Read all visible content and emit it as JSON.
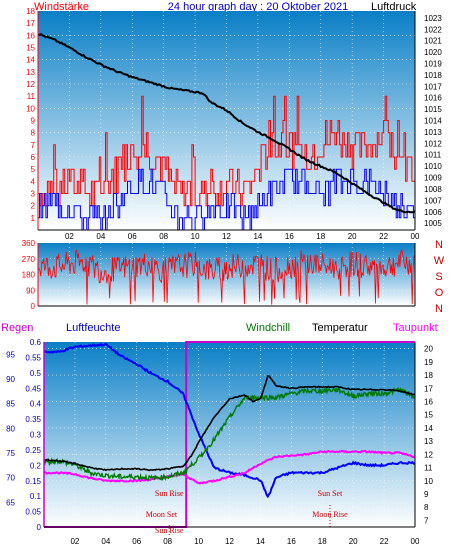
{
  "colors": {
    "wind": "#ff0000",
    "gust_blue": "#0000ff",
    "pressure": "#000000",
    "direction": "#ff0000",
    "rain": "#cc00cc",
    "humidity": "#0000ff",
    "windchill": "#007a00",
    "temperature": "#000000",
    "dewpoint": "#ff00ff",
    "annotation": "#cc0000",
    "grad_top": "#0a7fc6",
    "grad_bottom": "#ffffff"
  },
  "chart_data": [
    {
      "type": "line",
      "panel": "wind_pressure",
      "title": "24 hour graph day : 20 Oktober 2021",
      "left_label": "Windstärke",
      "right_label": "Luftdruck",
      "x_ticks": [
        "02",
        "04",
        "06",
        "08",
        "10",
        "12",
        "14",
        "16",
        "18",
        "20",
        "22",
        "00"
      ],
      "left_ticks": [
        "0",
        "1",
        "2",
        "3",
        "4",
        "5",
        "6",
        "7",
        "8",
        "9",
        "10",
        "11",
        "12",
        "13",
        "14",
        "15",
        "16",
        "17",
        "18"
      ],
      "left_range": [
        0,
        18
      ],
      "right_ticks": [
        "1005",
        "1006",
        "1007",
        "1008",
        "1009",
        "1010",
        "1011",
        "1012",
        "1013",
        "1014",
        "1015",
        "1016",
        "1017",
        "1018",
        "1019",
        "1020",
        "1021",
        "1022",
        "1023"
      ],
      "right_range": [
        1004.4,
        1023.6
      ],
      "series": [
        {
          "role": "pressure",
          "x": [
            0,
            1,
            2,
            3,
            4,
            5,
            6,
            7,
            8,
            8.5,
            9,
            9.5,
            10,
            10.5,
            11,
            12,
            13,
            14,
            15,
            16,
            17,
            18,
            19,
            20,
            21,
            22,
            22.5,
            23,
            23.5,
            24
          ],
          "values": [
            1021.6,
            1021.1,
            1020.4,
            1019.6,
            1018.9,
            1018.3,
            1017.8,
            1017.4,
            1017.0,
            1016.8,
            1016.7,
            1016.6,
            1016.5,
            1016.4,
            1015.6,
            1014.9,
            1013.8,
            1013.0,
            1012.3,
            1011.5,
            1010.6,
            1010.0,
            1009.4,
            1008.5,
            1007.6,
            1006.8,
            1006.4,
            1006.1,
            1006.0,
            1006.0
          ]
        },
        {
          "role": "wind",
          "x": [
            0,
            1,
            2,
            3,
            4,
            5,
            6,
            7,
            8,
            9,
            10,
            11,
            12,
            13,
            14,
            15,
            16,
            17,
            18,
            19,
            20,
            21,
            22,
            23,
            24
          ],
          "values": [
            3,
            3,
            4,
            3,
            3,
            5,
            7,
            7,
            5,
            3,
            3,
            3,
            4,
            3,
            5,
            7,
            7,
            6,
            7,
            8,
            7,
            7,
            8,
            5,
            5
          ]
        },
        {
          "role": "wind_blue",
          "x": [
            0,
            1,
            2,
            3,
            4,
            5,
            6,
            7,
            8,
            9,
            10,
            11,
            12,
            13,
            14,
            15,
            16,
            17,
            18,
            19,
            20,
            21,
            22,
            23,
            24
          ],
          "values": [
            2,
            2,
            2,
            1,
            1,
            2,
            4,
            4,
            3,
            1,
            1,
            2,
            2,
            1,
            2,
            3,
            4,
            4,
            3,
            4,
            4,
            4,
            3,
            2,
            2
          ]
        }
      ]
    },
    {
      "type": "line",
      "panel": "wind_direction",
      "left_ticks": [
        "0",
        "90",
        "180",
        "270",
        "360"
      ],
      "left_range": [
        0,
        360
      ],
      "right_labels": [
        "N",
        "W",
        "S",
        "O",
        "N"
      ],
      "series": [
        {
          "role": "direction",
          "x": [
            0,
            1,
            2,
            3,
            4,
            5,
            6,
            7,
            8,
            9,
            10,
            11,
            12,
            13,
            14,
            15,
            16,
            17,
            18,
            19,
            20,
            21,
            22,
            23,
            24
          ],
          "values": [
            230,
            220,
            240,
            250,
            200,
            210,
            230,
            240,
            200,
            230,
            240,
            200,
            220,
            230,
            240,
            200,
            230,
            250,
            230,
            220,
            240,
            230,
            220,
            250,
            240
          ]
        }
      ]
    },
    {
      "type": "line",
      "panel": "temperature_humidity",
      "labels": {
        "rain": "Regen",
        "humidity": "Luftfeuchte",
        "windchill": "Windchill",
        "temperature": "Temperatur",
        "dewpoint": "Taupunkt"
      },
      "x_ticks": [
        "02",
        "04",
        "06",
        "08",
        "10",
        "12",
        "14",
        "16",
        "18",
        "20",
        "22",
        "00"
      ],
      "humidity_ticks": [
        "65",
        "70",
        "75",
        "80",
        "85",
        "90",
        "95"
      ],
      "humidity_range": [
        60,
        97.5
      ],
      "rain_ticks": [
        "0",
        "0.05",
        "0.1",
        "0.15",
        "0.2",
        "0.25",
        "0.3",
        "0.35",
        "0.4",
        "0.45",
        "0.5",
        "0.55",
        "0.6"
      ],
      "rain_range": [
        0,
        0.6
      ],
      "temp_ticks": [
        "7",
        "8",
        "9",
        "10",
        "11",
        "12",
        "13",
        "14",
        "15",
        "16",
        "17",
        "18",
        "19",
        "20"
      ],
      "temp_range": [
        6.5,
        20.5
      ],
      "annotations": [
        {
          "text": "Sun Rise",
          "x": 8.1,
          "y": 0.1
        },
        {
          "text": "Moon Set",
          "x": 7.6,
          "y": 0.0327
        },
        {
          "text": "Sun Set",
          "x": 18.5,
          "y": 0.1
        },
        {
          "text": "Moon Rise",
          "x": 18.5,
          "y": 0.0327
        },
        {
          "text": "Sun Rise",
          "x": 8.1,
          "y": -0.0193
        }
      ],
      "series": [
        {
          "role": "rain",
          "x": [
            0,
            9.2,
            9.2,
            24
          ],
          "values": [
            0,
            0,
            0.6,
            0.6
          ]
        },
        {
          "role": "humidity",
          "x": [
            0,
            1,
            2,
            3,
            4,
            5,
            6,
            7,
            8,
            9,
            10,
            11,
            12,
            13,
            14,
            14.5,
            15,
            16,
            17,
            18,
            19,
            20,
            21,
            22,
            23,
            24
          ],
          "values": [
            95.5,
            95.5,
            96.5,
            96.8,
            97,
            94.6,
            93,
            91,
            89.5,
            87,
            79,
            72,
            71,
            70.5,
            69.5,
            66,
            70,
            71,
            71,
            71,
            72,
            73,
            72.5,
            72.5,
            73,
            73
          ]
        },
        {
          "role": "windchill",
          "x": [
            0,
            1,
            2,
            3,
            4,
            5,
            6,
            7,
            8,
            9,
            10,
            11,
            12,
            13,
            14,
            15,
            16,
            17,
            18,
            19,
            20,
            21,
            22,
            23,
            24
          ],
          "values": [
            11.4,
            11.5,
            11.2,
            10.6,
            10.4,
            10.3,
            10.3,
            10.2,
            10.3,
            10.6,
            11.7,
            13.1,
            14.8,
            16.3,
            16.3,
            16.3,
            16.6,
            16.8,
            16.8,
            16.9,
            16.4,
            16.6,
            16.6,
            16.9,
            16.3
          ]
        },
        {
          "role": "temperature",
          "x": [
            0,
            1,
            2,
            3,
            4,
            5,
            6,
            7,
            8,
            9,
            9.6,
            10,
            11,
            12,
            13,
            13.5,
            14,
            14.5,
            15,
            16,
            17,
            18,
            19,
            20,
            21,
            22,
            23,
            24
          ],
          "values": [
            11.6,
            11.5,
            11.3,
            11.0,
            10.8,
            10.9,
            10.9,
            10.8,
            10.9,
            11.1,
            12.0,
            12.9,
            14.8,
            16.2,
            16.5,
            16.0,
            16.2,
            18.0,
            17.2,
            17.0,
            17.1,
            17.1,
            17.1,
            16.9,
            16.9,
            16.9,
            16.8,
            16.5
          ]
        },
        {
          "role": "dewpoint",
          "x": [
            0,
            1,
            2,
            3,
            4,
            5,
            6,
            7,
            8,
            9,
            10,
            11,
            12,
            13,
            14,
            15,
            16,
            17,
            18,
            19,
            20,
            21,
            22,
            23,
            24
          ],
          "values": [
            10.6,
            10.6,
            10.5,
            10.2,
            10.0,
            10.0,
            10.0,
            10.1,
            10.3,
            10.5,
            9.8,
            10.0,
            10.3,
            10.6,
            11.3,
            11.8,
            11.9,
            12.0,
            12.2,
            12.2,
            12.2,
            12.2,
            12.1,
            12.1,
            11.8
          ]
        }
      ]
    }
  ]
}
